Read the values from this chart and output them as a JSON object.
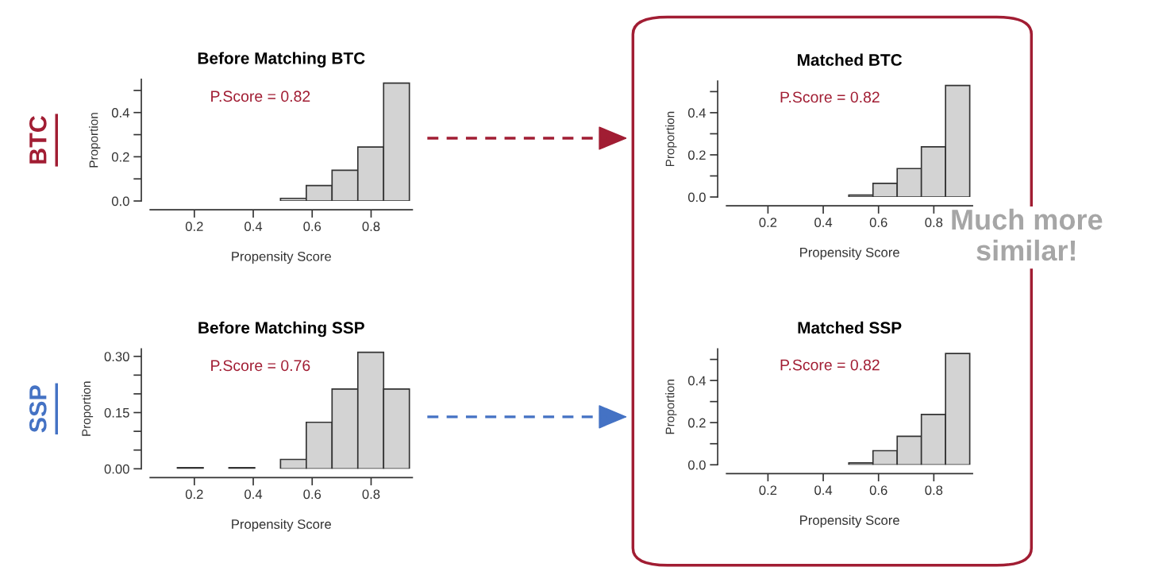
{
  "chart_data": [
    {
      "type": "histogram",
      "title": "Before Matching BTC",
      "xlabel": "Propensity Score",
      "ylabel": "Proportion",
      "color": "#d3d3d3",
      "bins": [
        0.055,
        0.1425,
        0.23,
        0.3175,
        0.405,
        0.4925,
        0.58,
        0.6675,
        0.755,
        0.8425,
        0.93
      ],
      "values": [
        0,
        0,
        0,
        0,
        0,
        0.012,
        0.07,
        0.139,
        0.244,
        0.533
      ],
      "xlim": [
        0.05,
        0.94
      ],
      "ylim": [
        0,
        0.55
      ],
      "xticks": [
        0.2,
        0.4,
        0.6,
        0.8
      ],
      "yticks": [
        {
          "value": 0.0,
          "label": "0.0"
        },
        {
          "value": 0.1,
          "label": null
        },
        0.2,
        {
          "value": 0.3,
          "label": null
        },
        0.4,
        {
          "value": 0.5,
          "label": null
        }
      ],
      "annotations": [
        "P.Score = 0.82",
        "BTC"
      ]
    },
    {
      "type": "histogram",
      "title": "Before Matching SSP",
      "xlabel": "Propensity Score",
      "ylabel": "Proportion",
      "color": "#d3d3d3",
      "bins": [
        0.055,
        0.1425,
        0.23,
        0.3175,
        0.405,
        0.4925,
        0.58,
        0.6675,
        0.755,
        0.8425,
        0.93
      ],
      "values": [
        0,
        0.003,
        0,
        0.003,
        0,
        0.025,
        0.124,
        0.213,
        0.311,
        0.213
      ],
      "xlim": [
        0.05,
        0.94
      ],
      "ylim": [
        0,
        0.32
      ],
      "xticks": [
        0.2,
        0.4,
        0.6,
        0.8
      ],
      "yticks": [
        {
          "value": 0.0,
          "label": "0.00"
        },
        {
          "value": 0.05,
          "label": null
        },
        {
          "value": 0.1,
          "label": null
        },
        0.15,
        {
          "value": 0.2,
          "label": null
        },
        {
          "value": 0.25,
          "label": null
        },
        {
          "value": 0.3,
          "label": "0.30"
        }
      ],
      "annotations": [
        "P.Score = 0.76",
        "SSP"
      ]
    },
    {
      "type": "histogram",
      "title": "Matched BTC",
      "xlabel": "Propensity Score",
      "ylabel": "Proportion",
      "color": "#d3d3d3",
      "bins": [
        0.055,
        0.1425,
        0.23,
        0.3175,
        0.405,
        0.4925,
        0.58,
        0.6675,
        0.755,
        0.8425,
        0.93
      ],
      "values": [
        0,
        0,
        0,
        0,
        0,
        0.009,
        0.065,
        0.135,
        0.238,
        0.529
      ],
      "xlim": [
        0.05,
        0.94
      ],
      "ylim": [
        0,
        0.55
      ],
      "xticks": [
        0.2,
        0.4,
        0.6,
        0.8
      ],
      "yticks": [
        {
          "value": 0.0,
          "label": "0.0"
        },
        {
          "value": 0.1,
          "label": null
        },
        0.2,
        {
          "value": 0.3,
          "label": null
        },
        0.4,
        {
          "value": 0.5,
          "label": null
        }
      ],
      "annotations": [
        "P.Score = 0.82",
        "Much more similar!"
      ]
    },
    {
      "type": "histogram",
      "title": "Matched SSP",
      "xlabel": "Propensity Score",
      "ylabel": "Proportion",
      "color": "#d3d3d3",
      "bins": [
        0.055,
        0.1425,
        0.23,
        0.3175,
        0.405,
        0.4925,
        0.58,
        0.6675,
        0.755,
        0.8425,
        0.93
      ],
      "values": [
        0,
        0,
        0,
        0,
        0,
        0.009,
        0.067,
        0.135,
        0.239,
        0.528
      ],
      "xlim": [
        0.05,
        0.94
      ],
      "ylim": [
        0,
        0.55
      ],
      "xticks": [
        0.2,
        0.4,
        0.6,
        0.8
      ],
      "yticks": [
        {
          "value": 0.0,
          "label": "0.0"
        },
        {
          "value": 0.1,
          "label": null
        },
        0.2,
        {
          "value": 0.3,
          "label": null
        },
        0.4,
        {
          "value": 0.5,
          "label": null
        }
      ],
      "annotations": [
        "P.Score = 0.82"
      ]
    }
  ]
}
